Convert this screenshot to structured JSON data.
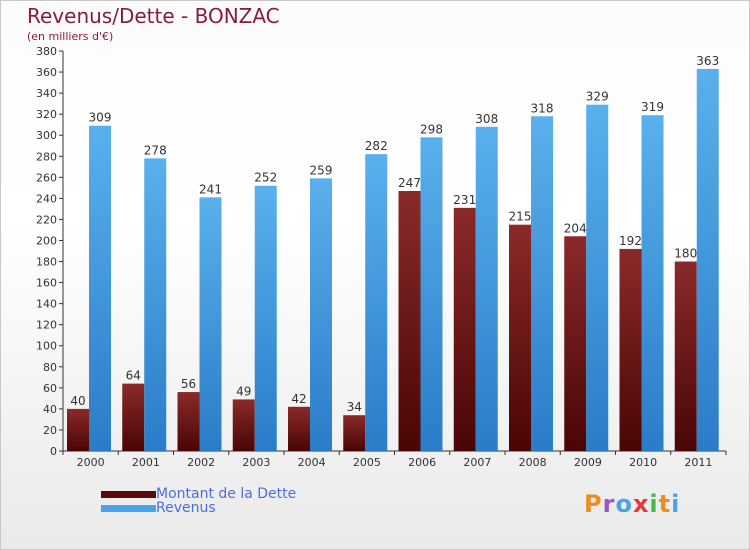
{
  "chart_data": {
    "type": "bar",
    "title": "Revenus/Dette - BONZAC",
    "subtitle": "(en milliers d'€)",
    "categories": [
      "2000",
      "2001",
      "2002",
      "2003",
      "2004",
      "2005",
      "2006",
      "2007",
      "2008",
      "2009",
      "2010",
      "2011"
    ],
    "series": [
      {
        "name": "Montant de la Dette",
        "color": "#7a1414",
        "values": [
          40,
          64,
          56,
          49,
          42,
          34,
          247,
          231,
          215,
          204,
          192,
          180
        ]
      },
      {
        "name": "Revenus",
        "color": "#4aa3e8",
        "values": [
          309,
          278,
          241,
          252,
          259,
          282,
          298,
          308,
          318,
          329,
          319,
          363
        ]
      }
    ],
    "ylim": [
      0,
      380
    ],
    "yticks": [
      0,
      20,
      40,
      60,
      80,
      100,
      120,
      140,
      160,
      180,
      200,
      220,
      240,
      260,
      280,
      300,
      320,
      340,
      360,
      380
    ],
    "grid": false,
    "legend_position": "bottom-left"
  },
  "legend": {
    "items": [
      {
        "label": "Montant de la Dette",
        "color": "#5a0a0a"
      },
      {
        "label": "Revenus",
        "color": "#4aa3e8"
      }
    ]
  },
  "brand": {
    "text": "Proxiti",
    "colors": [
      "#f08c1e",
      "#9c55c8",
      "#4aa3e8",
      "#e23a3a",
      "#4ab84a",
      "#f08c1e",
      "#4aa3e8"
    ]
  }
}
